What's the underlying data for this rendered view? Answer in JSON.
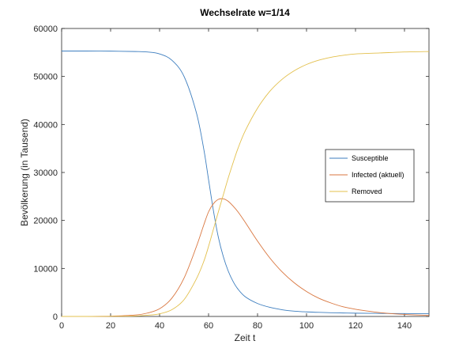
{
  "chart_data": {
    "type": "line",
    "title": "Wechselrate w=1/14",
    "xlabel": "Zeit t",
    "ylabel": "Bevölkerung (in Tausend)",
    "xlim": [
      0,
      150
    ],
    "ylim": [
      0,
      60000
    ],
    "xticks": [
      0,
      20,
      40,
      60,
      80,
      100,
      120,
      140
    ],
    "yticks": [
      0,
      10000,
      20000,
      30000,
      40000,
      50000,
      60000
    ],
    "grid": false,
    "legend_position": "right",
    "x": [
      0,
      10,
      20,
      30,
      35,
      40,
      45,
      50,
      55,
      58,
      60,
      62,
      64,
      66,
      68,
      70,
      72,
      75,
      80,
      85,
      90,
      95,
      100,
      105,
      110,
      115,
      120,
      130,
      140,
      150
    ],
    "series": [
      {
        "name": "Susceptible",
        "color": "#3d7ebf",
        "values": [
          55300,
          55300,
          55280,
          55200,
          55100,
          54700,
          53400,
          50000,
          42500,
          35000,
          28500,
          22000,
          16500,
          12500,
          9500,
          7300,
          5700,
          4100,
          2700,
          1900,
          1400,
          1100,
          950,
          850,
          780,
          720,
          680,
          630,
          600,
          580
        ]
      },
      {
        "name": "Infected (aktuell)",
        "color": "#d9763f",
        "values": [
          1,
          8,
          60,
          300,
          700,
          1600,
          3800,
          8000,
          14500,
          19000,
          21800,
          23500,
          24400,
          24500,
          24000,
          23000,
          21800,
          19600,
          15700,
          12200,
          9300,
          7000,
          5200,
          3800,
          2800,
          2000,
          1500,
          800,
          420,
          220
        ]
      },
      {
        "name": "Removed",
        "color": "#e3c04d",
        "values": [
          0,
          2,
          30,
          100,
          250,
          550,
          1400,
          3500,
          7800,
          11400,
          14600,
          18200,
          21800,
          25300,
          28800,
          32000,
          35000,
          38700,
          43400,
          46900,
          49400,
          51200,
          52500,
          53400,
          54000,
          54400,
          54700,
          54900,
          55100,
          55200
        ]
      }
    ]
  }
}
